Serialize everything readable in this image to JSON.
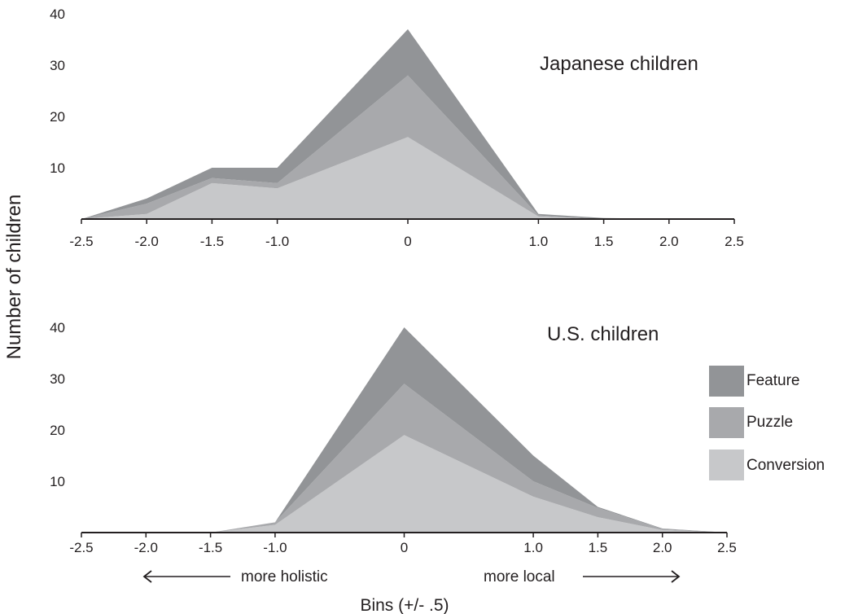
{
  "chart_data": [
    {
      "type": "area",
      "stacked": true,
      "title": "Japanese children",
      "x": [
        -2.5,
        -2.0,
        -1.5,
        -1.0,
        0,
        1.0,
        1.5,
        2.0,
        2.5
      ],
      "x_tick_labels": [
        "-2.5",
        "-2.0",
        "-1.5",
        "-1.0",
        "0",
        "1.0",
        "1.5",
        "2.0",
        "2.5"
      ],
      "y_ticks": [
        10,
        20,
        30,
        40
      ],
      "ylim": [
        0,
        40
      ],
      "series": [
        {
          "name": "Conversion",
          "color": "#c7c8ca",
          "values": [
            0,
            1,
            7,
            6,
            16,
            0.5,
            0,
            0,
            0
          ]
        },
        {
          "name": "Puzzle",
          "color": "#a8a9ac",
          "values": [
            0,
            2,
            1,
            1,
            12,
            0.2,
            0,
            0,
            0
          ]
        },
        {
          "name": "Feature",
          "color": "#929497",
          "values": [
            0,
            1,
            2,
            3,
            9,
            0.3,
            0.2,
            0,
            0
          ]
        }
      ]
    },
    {
      "type": "area",
      "stacked": true,
      "title": "U.S. children",
      "x": [
        -2.5,
        -2.0,
        -1.5,
        -1.0,
        0,
        1.0,
        1.5,
        2.0,
        2.5
      ],
      "x_tick_labels": [
        "-2.5",
        "-2.0",
        "-1.5",
        "-1.0",
        "0",
        "1.0",
        "1.5",
        "2.0",
        "2.5"
      ],
      "y_ticks": [
        10,
        20,
        30,
        40
      ],
      "ylim": [
        0,
        40
      ],
      "series": [
        {
          "name": "Conversion",
          "color": "#c7c8ca",
          "values": [
            0,
            0,
            0,
            1.5,
            19,
            7,
            3,
            0.5,
            0
          ]
        },
        {
          "name": "Puzzle",
          "color": "#a8a9ac",
          "values": [
            0,
            0,
            0,
            0.5,
            10,
            3,
            1.8,
            0.2,
            0
          ]
        },
        {
          "name": "Feature",
          "color": "#929497",
          "values": [
            0,
            0,
            0,
            0,
            11,
            5,
            0.2,
            0.1,
            0
          ]
        }
      ]
    }
  ],
  "ylabel": "Number of children",
  "xlabel": "Bins (+/- .5)",
  "arrow_left_label": "more holistic",
  "arrow_right_label": "more local",
  "legend": [
    {
      "name": "Feature",
      "color": "#929497"
    },
    {
      "name": "Puzzle",
      "color": "#a8a9ac"
    },
    {
      "name": "Conversion",
      "color": "#c7c8ca"
    }
  ],
  "axis_color": "#231f20"
}
